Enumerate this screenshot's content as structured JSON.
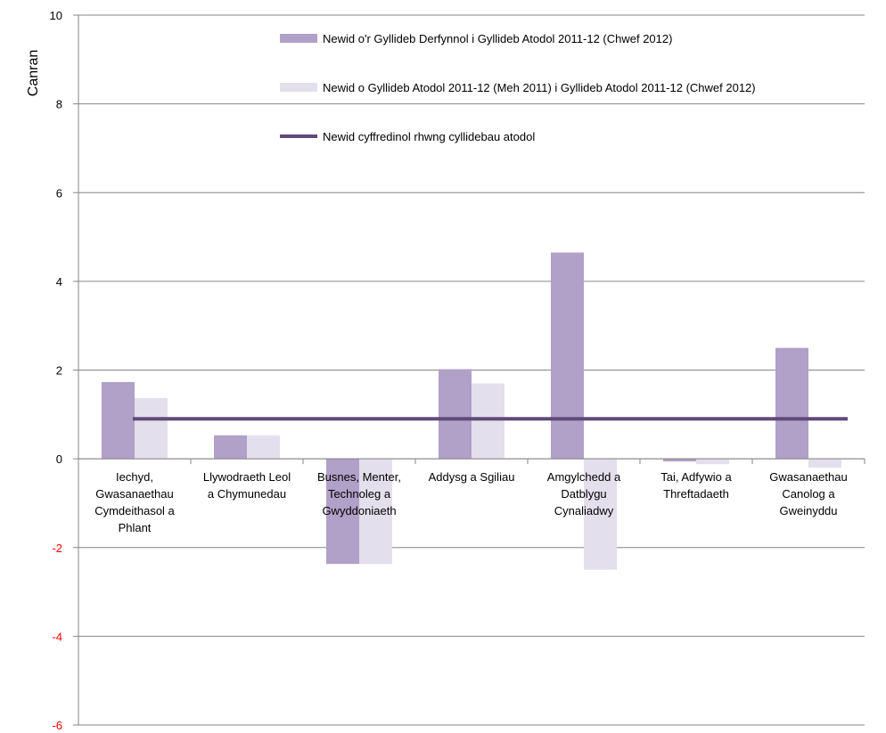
{
  "chart_data": {
    "type": "bar",
    "ylabel": "Canran",
    "xlabel": "",
    "ylim": [
      -6,
      10
    ],
    "yticks": [
      -6,
      -4,
      -2,
      0,
      2,
      4,
      6,
      8,
      10
    ],
    "grid": true,
    "legend_position": "top-right",
    "categories": [
      [
        "Iechyd,",
        "Gwasanaethau",
        "Cymdeithasol a",
        "Phlant"
      ],
      [
        "Llywodraeth Leol",
        "a Chymunedau"
      ],
      [
        "Busnes, Menter,",
        "Technoleg a",
        "Gwyddoniaeth"
      ],
      [
        "Addysg a Sgiliau"
      ],
      [
        "Amgylchedd a",
        "Datblygu",
        "Cynaliadwy"
      ],
      [
        "Tai, Adfywio a",
        "Threftadaeth"
      ],
      [
        "Gwasanaethau",
        "Canolog a",
        "Gweinyddu"
      ]
    ],
    "series": [
      {
        "name": "Newid o'r Gyllideb Derfynnol i Gyllideb Atodol 2011-12 (Chwef 2012)",
        "type": "bar",
        "color": "#b1a0c7",
        "values": [
          1.73,
          0.53,
          -2.37,
          2.02,
          4.65,
          -0.06,
          2.5
        ]
      },
      {
        "name": "Newid o Gyllideb Atodol 2011-12 (Meh 2011) i Gyllideb Atodol 2011-12 (Chwef 2012)",
        "type": "bar",
        "color": "#e4dfec",
        "values": [
          1.37,
          0.53,
          -2.37,
          1.7,
          -2.5,
          -0.12,
          -0.2
        ]
      },
      {
        "name": "Newid cyffredinol rhwng cyllidebau atodol",
        "type": "line",
        "color": "#604a7b",
        "values": [
          0.9,
          0.9,
          0.9,
          0.9,
          0.9,
          0.9,
          0.9
        ]
      }
    ],
    "colors": {
      "positive_tick": "#000000",
      "negative_tick": "#ff0000",
      "grid": "#868686"
    }
  }
}
